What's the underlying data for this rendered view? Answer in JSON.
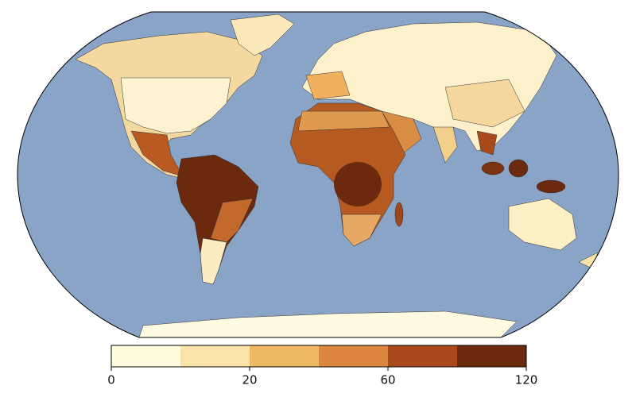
{
  "colorbar": {
    "bounds": [
      0,
      10,
      20,
      40,
      60,
      90,
      120
    ],
    "colors": [
      "#fffbdc",
      "#f8e4a8",
      "#f0b965",
      "#dc8640",
      "#a9491c",
      "#6b2a0e"
    ],
    "ticks": [
      0,
      20,
      60,
      120
    ]
  }
}
